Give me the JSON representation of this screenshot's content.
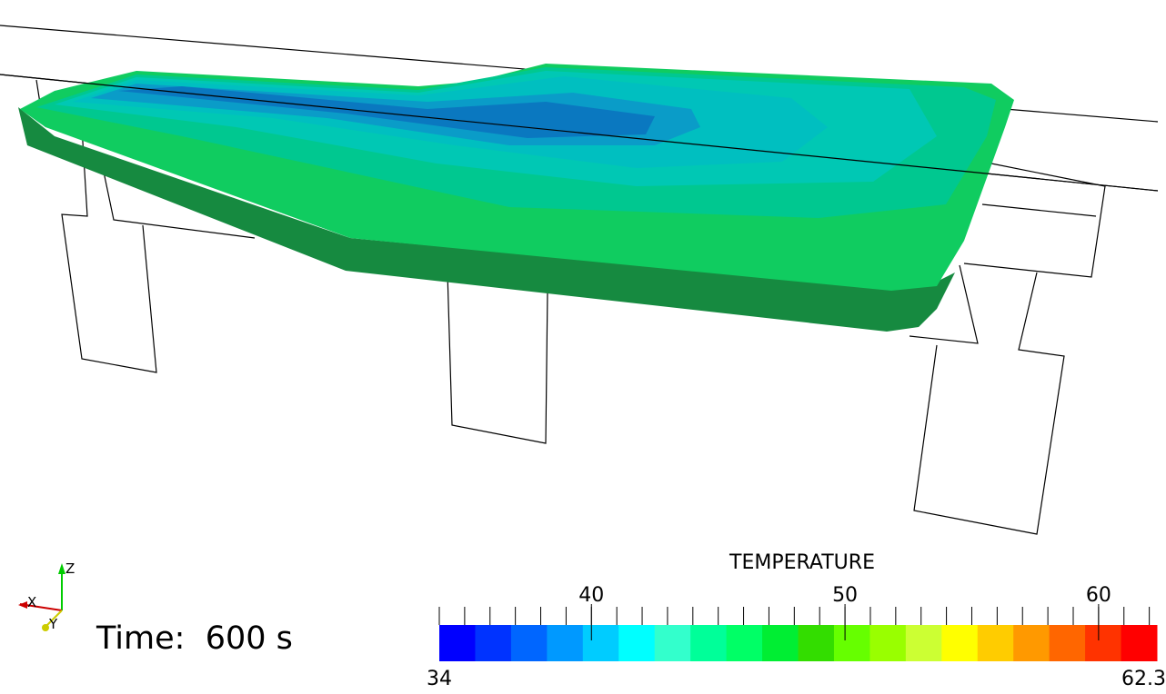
{
  "legend": {
    "title": "TEMPERATURE",
    "min_label": "34",
    "max_label": "62.3",
    "ticks": [
      {
        "value": 40,
        "label": "40"
      },
      {
        "value": 50,
        "label": "50"
      },
      {
        "value": 60,
        "label": "60"
      }
    ],
    "range": [
      34,
      62.3
    ],
    "band_colors": [
      "#0000ff",
      "#0033ff",
      "#0066ff",
      "#0099ff",
      "#00ccff",
      "#00ffff",
      "#33ffcc",
      "#00ff99",
      "#00ff66",
      "#00ee33",
      "#33dd00",
      "#66ff00",
      "#99ff00",
      "#ccff33",
      "#ffff00",
      "#ffcc00",
      "#ff9900",
      "#ff6600",
      "#ff3300",
      "#ff0000"
    ]
  },
  "time": {
    "text": "Time:  600 s"
  },
  "axes": {
    "x_label": "X",
    "y_label": "Y",
    "z_label": "Z",
    "x_color": "#cc0000",
    "y_color": "#cccc00",
    "z_color": "#00cc00"
  },
  "surface_colors": {
    "coldest": "#0a78c0",
    "cold": "#0a9cc8",
    "mid": "#00bfc0",
    "mid_warm": "#00c8b4",
    "warm": "#00c890",
    "warmest": "#10cc60",
    "side": "#168a40"
  }
}
